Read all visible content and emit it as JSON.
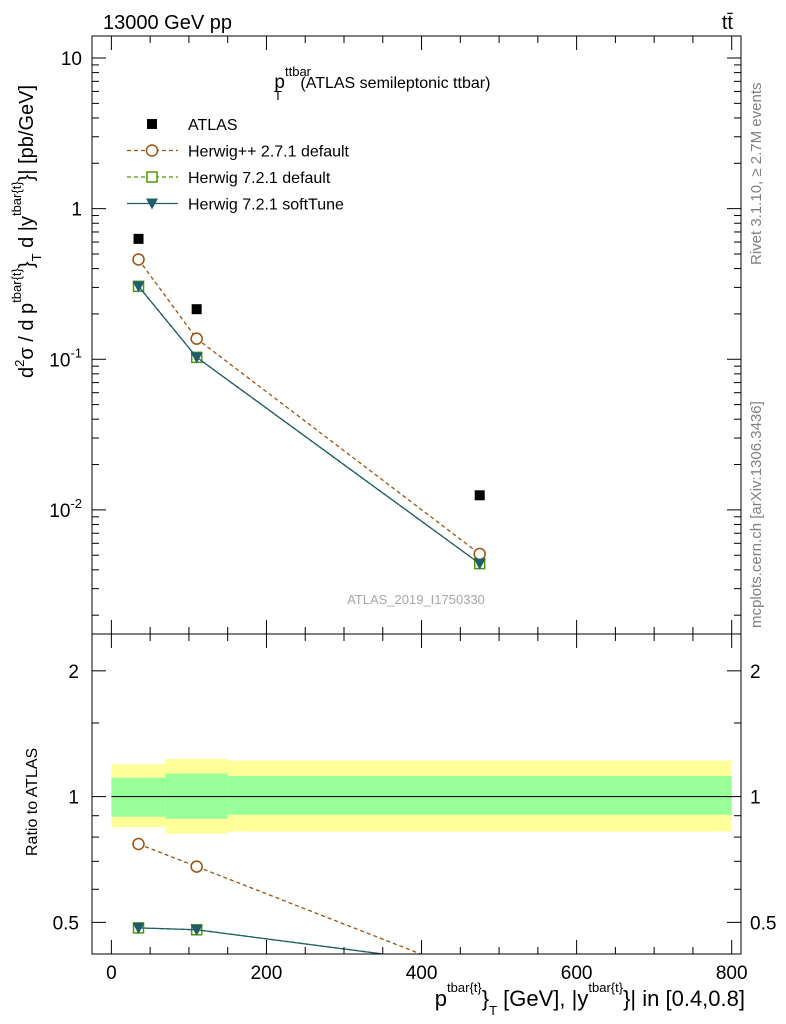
{
  "header": {
    "energy": "13000 GeV pp",
    "process": "tt̄"
  },
  "main_title": {
    "p": "p",
    "sup": "ttbar",
    "sub": "T",
    "suffix": " (ATLAS semileptonic ttbar)"
  },
  "side": {
    "rivet": "Rivet 3.1.10, ≥ 2.7M events",
    "mcplots": "mcplots.cern.ch [arXiv:1306.3436]"
  },
  "watermark": "ATLAS_2019_I1750330",
  "y_label_top": {
    "d": "d",
    "two": "2",
    "sigma_d": "σ / d p",
    "sup1": "tbar{t}",
    "brace": "}",
    "subT": "T",
    "d_y": " d |y",
    "sup2": "tbar{t}",
    "end": "}| [pb/GeV]"
  },
  "y_label_bottom": "Ratio to ATLAS",
  "x_label": {
    "p": "p",
    "sup1": "tbar{t}",
    "brace": "}",
    "subT": "T",
    "mid": " [GeV], |y",
    "sup2": "tbar{t}",
    "end": "}| in [0.4,0.8]"
  },
  "top_ticks": [
    {
      "base": "10",
      "exp": "-2",
      "value": 0.01
    },
    {
      "base": "10",
      "exp": "-1",
      "value": 0.1
    },
    {
      "base": "1",
      "exp": "",
      "value": 1
    },
    {
      "base": "10",
      "exp": "",
      "value": 10
    }
  ],
  "ratio_ticks": [
    "0.5",
    "1",
    "2"
  ],
  "x_ticks": [
    "0",
    "200",
    "400",
    "600",
    "800"
  ],
  "legend": [
    {
      "label": "ATLAS",
      "marker": "filled-square",
      "color": "#000000",
      "line": "none"
    },
    {
      "label": "Herwig++ 2.7.1 default",
      "marker": "open-circle",
      "color": "#a0520d",
      "line": "dashed"
    },
    {
      "label": "Herwig 7.2.1 default",
      "marker": "open-square",
      "color": "#4e9a06",
      "line": "dashed"
    },
    {
      "label": "Herwig 7.2.1 softTune",
      "marker": "filled-triangle-down",
      "color": "#1f5d6b",
      "line": "solid"
    }
  ],
  "chart_data": {
    "type": "line",
    "x_range": [
      -25,
      812
    ],
    "top_panel": {
      "y_scale": "log",
      "ylim": [
        0.0015,
        14
      ],
      "series": [
        {
          "name": "ATLAS",
          "x": [
            35,
            110,
            475
          ],
          "y": [
            0.63,
            0.215,
            0.0125
          ]
        },
        {
          "name": "Herwig++ 2.7.1 default",
          "x": [
            35,
            110,
            475
          ],
          "y": [
            0.46,
            0.137,
            0.0051
          ]
        },
        {
          "name": "Herwig 7.2.1 default",
          "x": [
            35,
            110,
            475
          ],
          "y": [
            0.305,
            0.103,
            0.0044
          ]
        },
        {
          "name": "Herwig 7.2.1 softTune",
          "x": [
            35,
            110,
            475
          ],
          "y": [
            0.305,
            0.103,
            0.0044
          ]
        }
      ]
    },
    "ratio_panel": {
      "y_scale": "log",
      "ylim": [
        0.42,
        2.45
      ],
      "bands": [
        {
          "x": [
            0,
            70
          ],
          "inner": [
            0.895,
            1.11
          ],
          "outer": [
            0.845,
            1.195
          ]
        },
        {
          "x": [
            70,
            150
          ],
          "inner": [
            0.885,
            1.135
          ],
          "outer": [
            0.815,
            1.23
          ]
        },
        {
          "x": [
            150,
            800
          ],
          "inner": [
            0.905,
            1.12
          ],
          "outer": [
            0.825,
            1.22
          ]
        }
      ],
      "series": [
        {
          "name": "Herwig++ 2.7.1 default",
          "x": [
            35,
            110,
            475
          ],
          "y": [
            0.77,
            0.68,
            0.37
          ]
        },
        {
          "name": "Herwig 7.2.1 default",
          "x": [
            35,
            110,
            350
          ],
          "y": [
            0.485,
            0.48,
            0.42
          ]
        },
        {
          "name": "Herwig 7.2.1 softTune",
          "x": [
            35,
            110,
            350
          ],
          "y": [
            0.485,
            0.48,
            0.42
          ]
        }
      ]
    }
  }
}
